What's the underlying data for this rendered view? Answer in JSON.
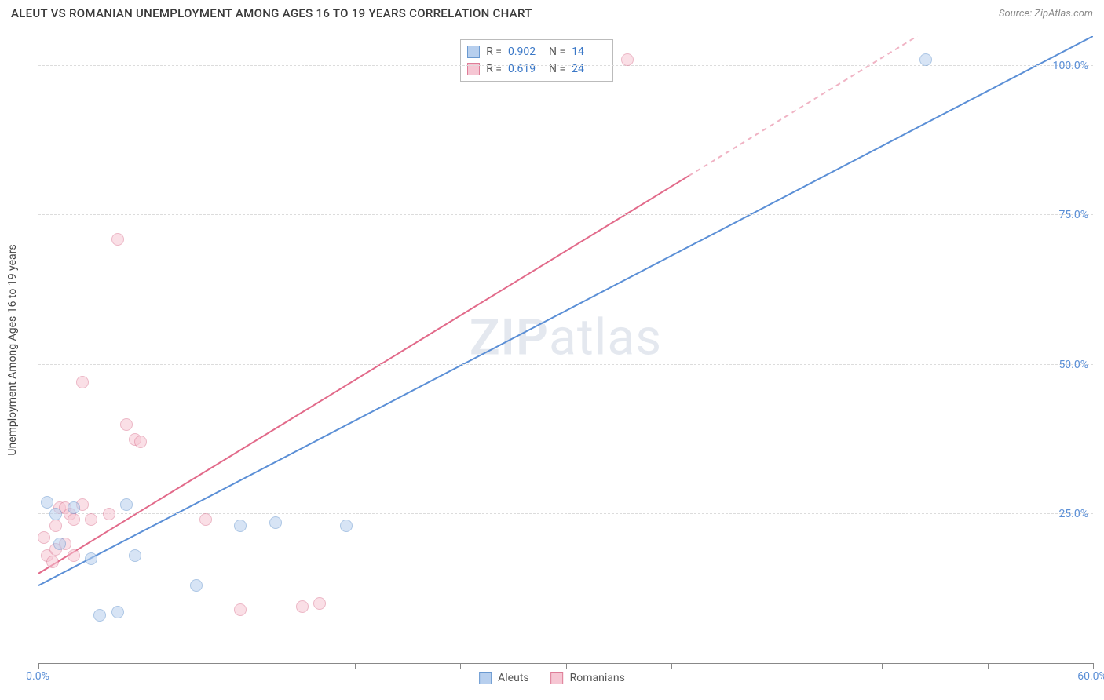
{
  "title": "ALEUT VS ROMANIAN UNEMPLOYMENT AMONG AGES 16 TO 19 YEARS CORRELATION CHART",
  "source": "Source: ZipAtlas.com",
  "watermark": "ZIPatlas",
  "y_axis_title": "Unemployment Among Ages 16 to 19 years",
  "chart": {
    "type": "scatter",
    "xlim": [
      0,
      60
    ],
    "ylim": [
      0,
      105
    ],
    "x_ticks": [
      0,
      6,
      12,
      18,
      24,
      30,
      36,
      42,
      48,
      54,
      60
    ],
    "x_tick_labels": {
      "0": "0.0%",
      "60": "60.0%"
    },
    "y_ticks": [
      25,
      50,
      75,
      100
    ],
    "y_tick_labels": {
      "25": "25.0%",
      "50": "50.0%",
      "75": "75.0%",
      "100": "100.0%"
    },
    "background_color": "#ffffff",
    "grid_color": "#dcdcdc",
    "axis_color": "#888888",
    "tick_label_color": "#5b8fd6",
    "marker_radius": 8,
    "marker_opacity": 0.55,
    "line_width": 2
  },
  "series": {
    "aleuts": {
      "label": "Aleuts",
      "color": "#5b8fd6",
      "fill": "#b7cfee",
      "stroke": "#6a99d0",
      "r_value": "0.902",
      "n_value": "14",
      "trend": {
        "x1": 0,
        "y1": 13,
        "x2": 60,
        "y2": 105,
        "dashed_from_x": null
      },
      "points": [
        {
          "x": 0.5,
          "y": 27
        },
        {
          "x": 1.0,
          "y": 25
        },
        {
          "x": 1.2,
          "y": 20
        },
        {
          "x": 2.0,
          "y": 26
        },
        {
          "x": 3.0,
          "y": 17.5
        },
        {
          "x": 3.5,
          "y": 8
        },
        {
          "x": 4.5,
          "y": 8.5
        },
        {
          "x": 5.0,
          "y": 26.5
        },
        {
          "x": 5.5,
          "y": 18
        },
        {
          "x": 9.0,
          "y": 13
        },
        {
          "x": 11.5,
          "y": 23
        },
        {
          "x": 13.5,
          "y": 23.5
        },
        {
          "x": 17.5,
          "y": 23
        },
        {
          "x": 50.5,
          "y": 101
        }
      ]
    },
    "romanians": {
      "label": "Romanians",
      "color": "#e26a8a",
      "fill": "#f6c6d3",
      "stroke": "#de7d98",
      "r_value": "0.619",
      "n_value": "24",
      "trend": {
        "x1": 0,
        "y1": 15,
        "x2": 50,
        "y2": 105,
        "dashed_from_x": 37
      },
      "points": [
        {
          "x": 0.3,
          "y": 21
        },
        {
          "x": 0.5,
          "y": 18
        },
        {
          "x": 0.8,
          "y": 17
        },
        {
          "x": 1.0,
          "y": 19
        },
        {
          "x": 1.0,
          "y": 23
        },
        {
          "x": 1.2,
          "y": 26
        },
        {
          "x": 1.5,
          "y": 20
        },
        {
          "x": 1.5,
          "y": 26
        },
        {
          "x": 1.8,
          "y": 25
        },
        {
          "x": 2.0,
          "y": 18
        },
        {
          "x": 2.0,
          "y": 24
        },
        {
          "x": 2.5,
          "y": 26.5
        },
        {
          "x": 2.5,
          "y": 47
        },
        {
          "x": 3.0,
          "y": 24
        },
        {
          "x": 4.0,
          "y": 25
        },
        {
          "x": 4.5,
          "y": 71
        },
        {
          "x": 5.0,
          "y": 40
        },
        {
          "x": 5.5,
          "y": 37.5
        },
        {
          "x": 5.8,
          "y": 37
        },
        {
          "x": 9.5,
          "y": 24
        },
        {
          "x": 11.5,
          "y": 9
        },
        {
          "x": 15.0,
          "y": 9.5
        },
        {
          "x": 16.0,
          "y": 10
        },
        {
          "x": 33.5,
          "y": 101
        }
      ]
    }
  },
  "stats_legend": {
    "r_label": "R =",
    "n_label": "N ="
  }
}
